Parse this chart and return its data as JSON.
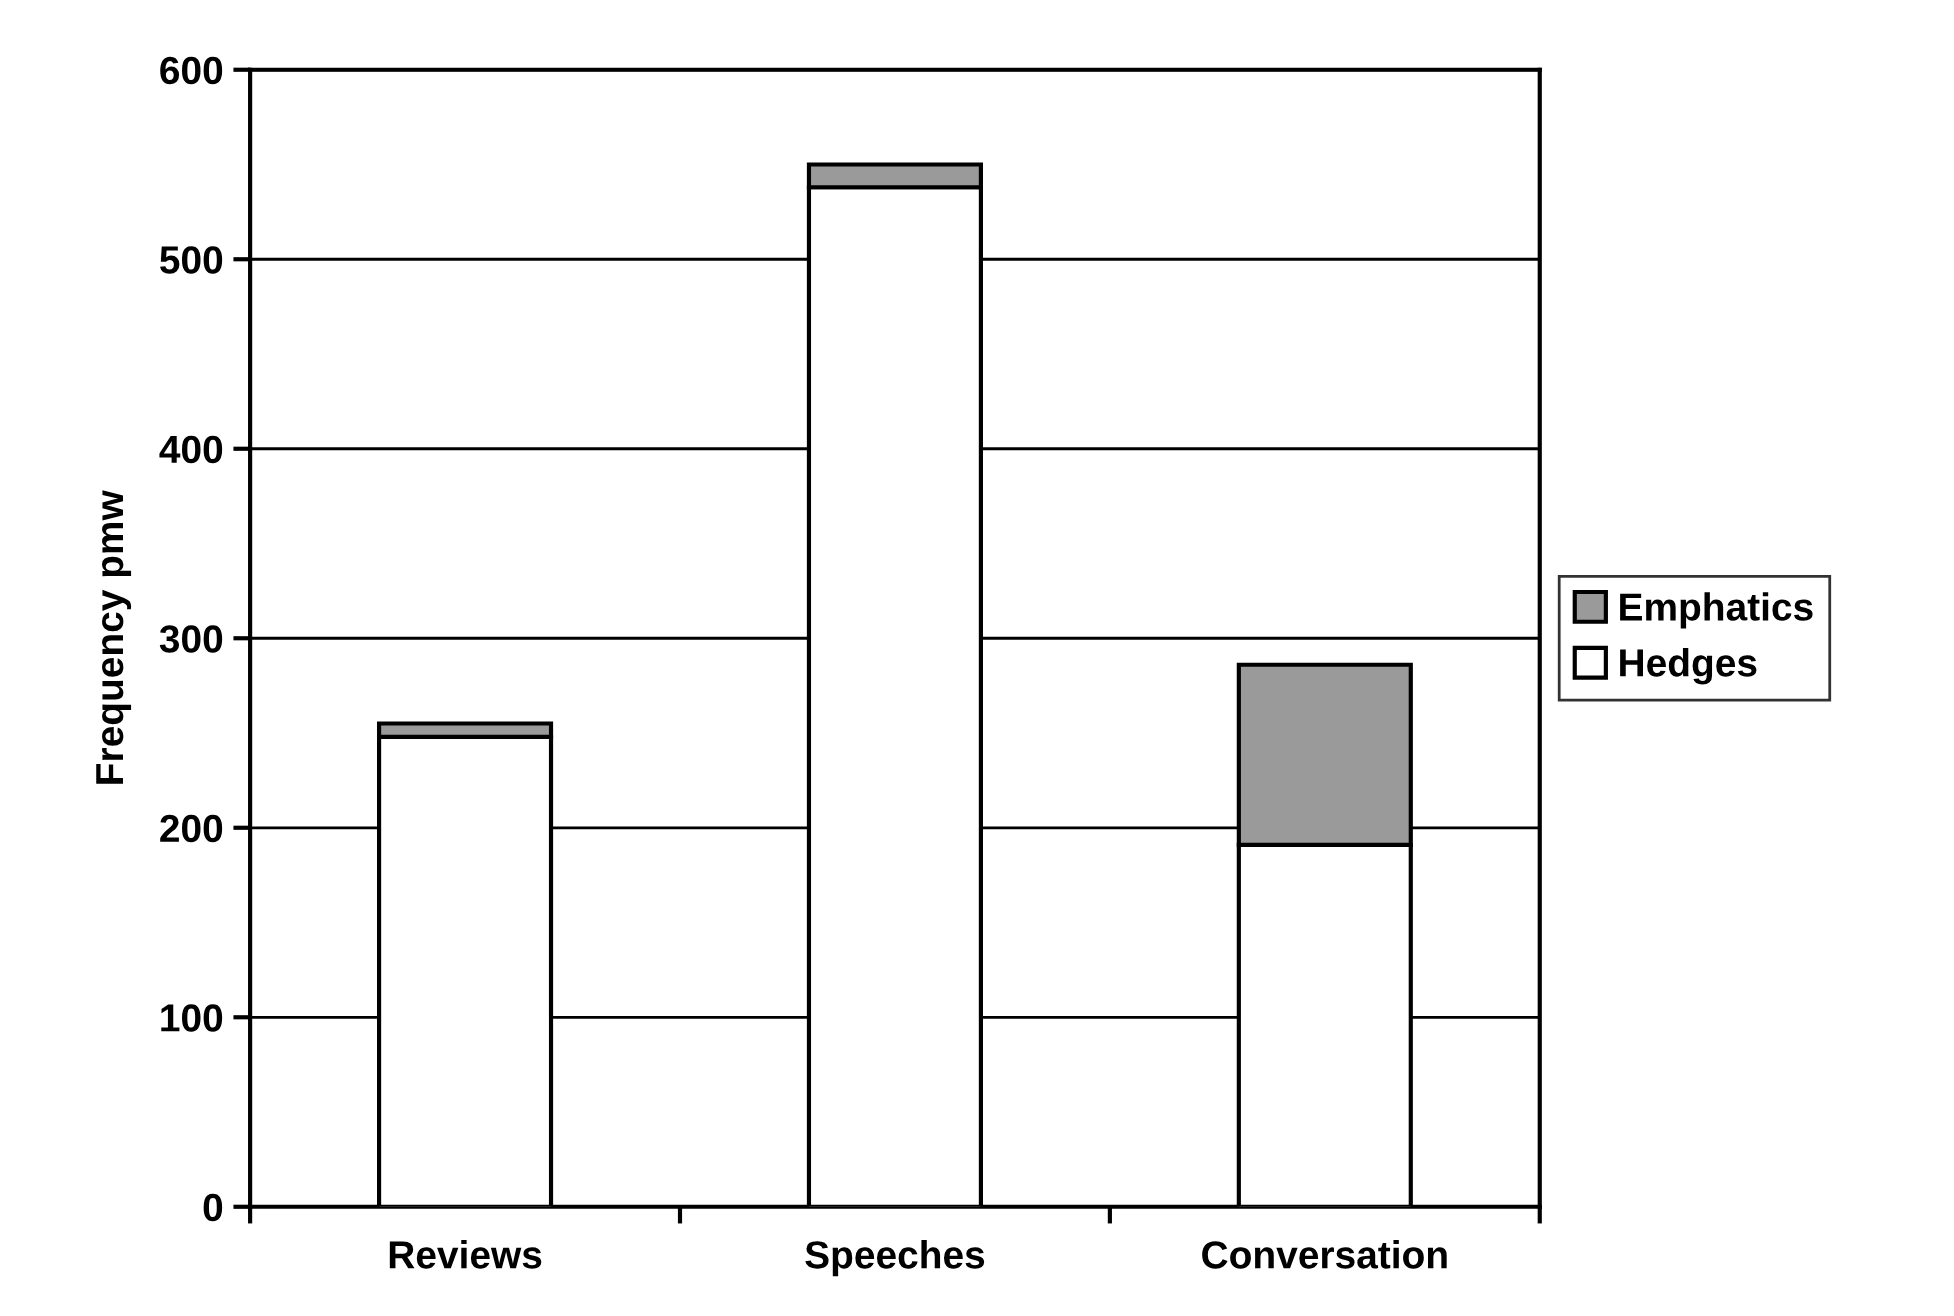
{
  "chart_data": {
    "type": "bar",
    "stacked": true,
    "ylabel": "Frequency pmw",
    "categories": [
      "Reviews",
      "Speeches",
      "Conversation"
    ],
    "series": [
      {
        "name": "Hedges",
        "color": "#ffffff",
        "values": [
          248,
          538,
          191
        ]
      },
      {
        "name": "Emphatics",
        "color": "#9a9a9a",
        "values": [
          7,
          12,
          95
        ]
      }
    ],
    "ylim": [
      0,
      600
    ],
    "yticks": [
      0,
      100,
      200,
      300,
      400,
      500,
      600
    ],
    "grid": "y",
    "legend": "right"
  }
}
